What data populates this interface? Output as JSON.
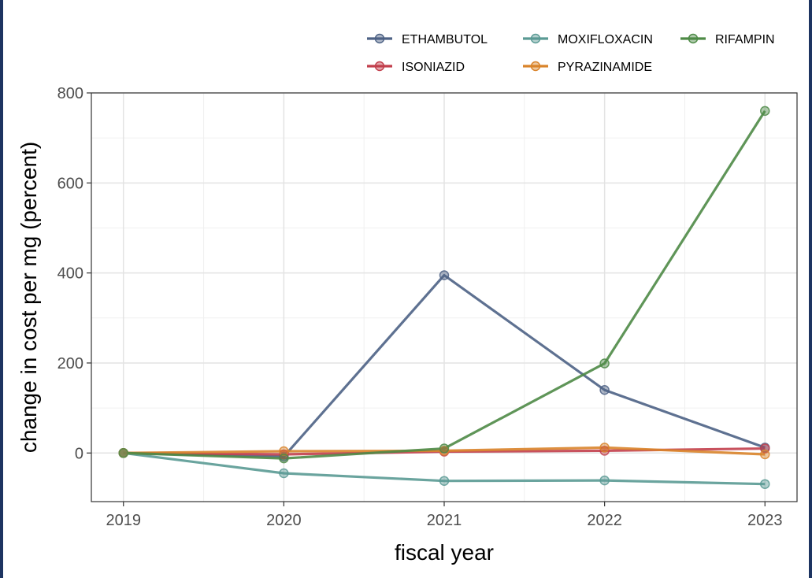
{
  "chart_data": {
    "type": "line",
    "title": "",
    "xlabel": "fiscal year",
    "ylabel": "change in cost per mg (percent)",
    "x": [
      2019,
      2020,
      2021,
      2022,
      2023
    ],
    "x_ticks": [
      "2019",
      "2020",
      "2021",
      "2022",
      "2023"
    ],
    "y_ticks": [
      "0",
      "200",
      "400",
      "600",
      "800"
    ],
    "xlim": [
      2018.8,
      2023.2
    ],
    "ylim": [
      -108,
      800
    ],
    "grid": true,
    "legend_position": "top-right",
    "series": [
      {
        "name": "ETHAMBUTOL",
        "color": "#4d6285",
        "values": [
          0,
          -8,
          395,
          140,
          12
        ]
      },
      {
        "name": "ISONIAZID",
        "color": "#c23f4c",
        "values": [
          0,
          -3,
          3,
          5,
          10
        ]
      },
      {
        "name": "MOXIFLOXACIN",
        "color": "#5a9a94",
        "values": [
          0,
          -45,
          -62,
          -61,
          -69
        ]
      },
      {
        "name": "PYRAZINAMIDE",
        "color": "#d9842b",
        "values": [
          0,
          4,
          5,
          12,
          -3
        ]
      },
      {
        "name": "RIFAMPIN",
        "color": "#4e8a46",
        "values": [
          0,
          -12,
          10,
          199,
          760
        ]
      }
    ]
  }
}
